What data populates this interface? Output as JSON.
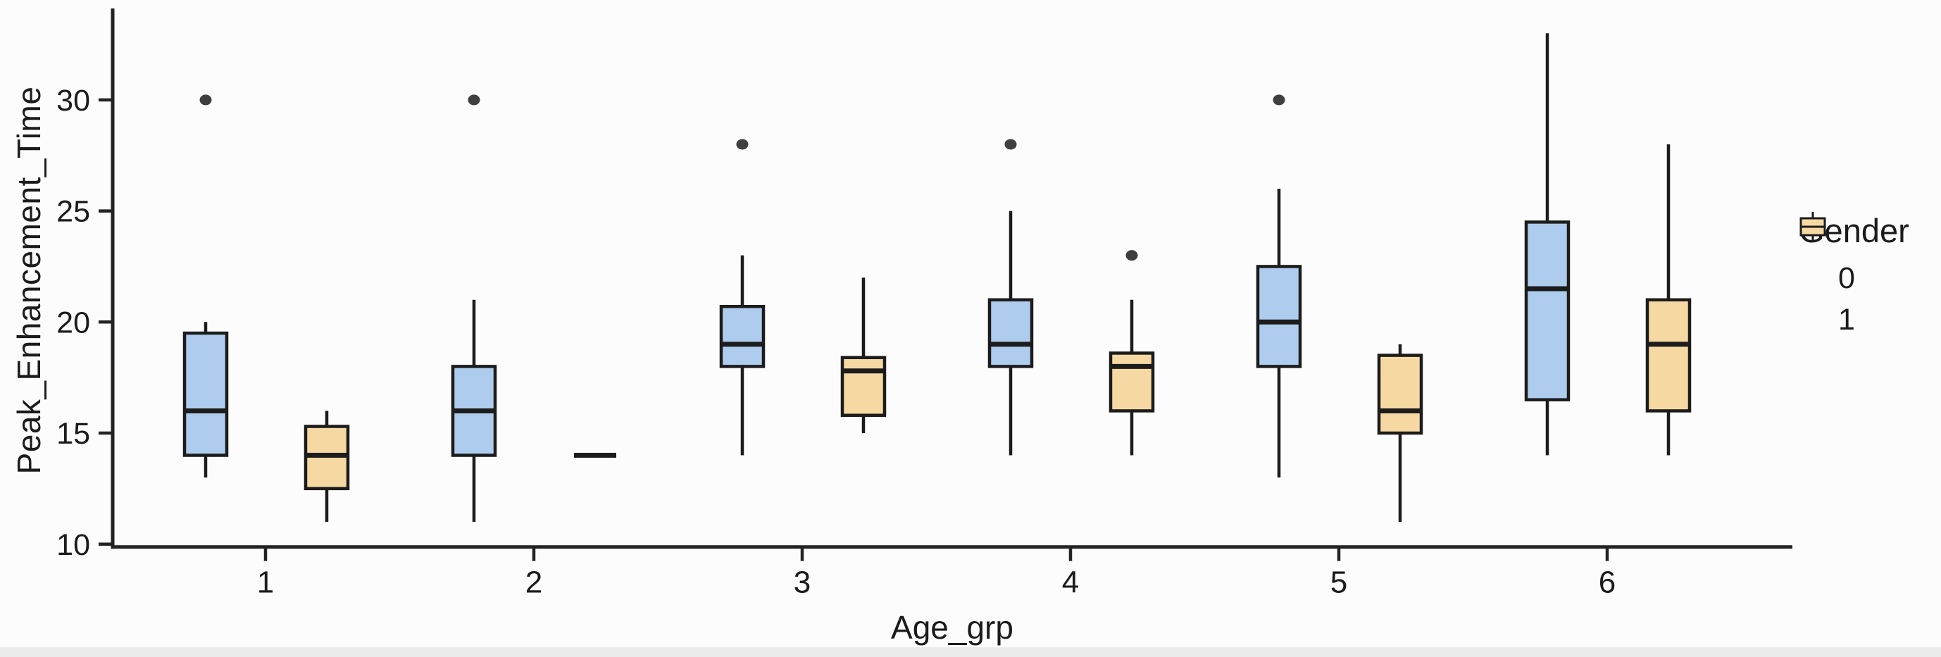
{
  "figure": {
    "background": "#fcfcfc",
    "axis_color": "#232323",
    "text_color": "#1b1b1b",
    "box_stroke": "#1c1c1c",
    "outlier_color": "#3f3f3f",
    "y_axis": {
      "title": "Peak_Enhancement_Time",
      "ticks": [
        30,
        25,
        20,
        15,
        10
      ]
    },
    "x_axis": {
      "title": "Age_grp",
      "ticks": [
        "1",
        "2",
        "3",
        "4",
        "5",
        "6"
      ]
    },
    "legend": {
      "title": "Gender",
      "entries": [
        {
          "label": "0",
          "color": "#AECDEE"
        },
        {
          "label": "1",
          "color": "#F6D9A2"
        }
      ]
    }
  },
  "chart_data": {
    "type": "boxplot",
    "title": "",
    "xlabel": "Age_grp",
    "ylabel": "Peak_Enhancement_Time",
    "ylim": [
      9.9,
      34
    ],
    "grid": false,
    "legend_title": "Gender",
    "legend_position": "right",
    "categories": [
      "1",
      "2",
      "3",
      "4",
      "5",
      "6"
    ],
    "series": [
      {
        "name": "0",
        "color": "#AECDEE",
        "boxes": [
          {
            "group": "1",
            "whisker_min": 13,
            "q1": 14,
            "median": 16,
            "q3": 19.5,
            "whisker_max": 20,
            "outliers": [
              30
            ]
          },
          {
            "group": "2",
            "whisker_min": 11,
            "q1": 14,
            "median": 16,
            "q3": 18,
            "whisker_max": 21,
            "outliers": [
              30
            ]
          },
          {
            "group": "3",
            "whisker_min": 14,
            "q1": 18,
            "median": 19,
            "q3": 20.7,
            "whisker_max": 23,
            "outliers": [
              28
            ]
          },
          {
            "group": "4",
            "whisker_min": 14,
            "q1": 18,
            "median": 19,
            "q3": 21,
            "whisker_max": 25,
            "outliers": [
              28
            ]
          },
          {
            "group": "5",
            "whisker_min": 13,
            "q1": 18,
            "median": 20,
            "q3": 22.5,
            "whisker_max": 26,
            "outliers": [
              30
            ]
          },
          {
            "group": "6",
            "whisker_min": 14,
            "q1": 16.5,
            "median": 21.5,
            "q3": 24.5,
            "whisker_max": 33,
            "outliers": []
          }
        ]
      },
      {
        "name": "1",
        "color": "#F6D9A2",
        "boxes": [
          {
            "group": "1",
            "whisker_min": 11,
            "q1": 12.5,
            "median": 14,
            "q3": 15.3,
            "whisker_max": 16,
            "outliers": []
          },
          {
            "group": "2",
            "whisker_min": 14,
            "q1": 14,
            "median": 14,
            "q3": 14,
            "whisker_max": 14,
            "outliers": []
          },
          {
            "group": "3",
            "whisker_min": 15,
            "q1": 15.8,
            "median": 17.8,
            "q3": 18.4,
            "whisker_max": 22,
            "outliers": []
          },
          {
            "group": "4",
            "whisker_min": 14,
            "q1": 16,
            "median": 18,
            "q3": 18.6,
            "whisker_max": 21,
            "outliers": [
              23
            ]
          },
          {
            "group": "5",
            "whisker_min": 11,
            "q1": 15,
            "median": 16,
            "q3": 18.5,
            "whisker_max": 19,
            "outliers": []
          },
          {
            "group": "6",
            "whisker_min": 14,
            "q1": 16,
            "median": 19,
            "q3": 21,
            "whisker_max": 28,
            "outliers": []
          }
        ]
      }
    ]
  }
}
